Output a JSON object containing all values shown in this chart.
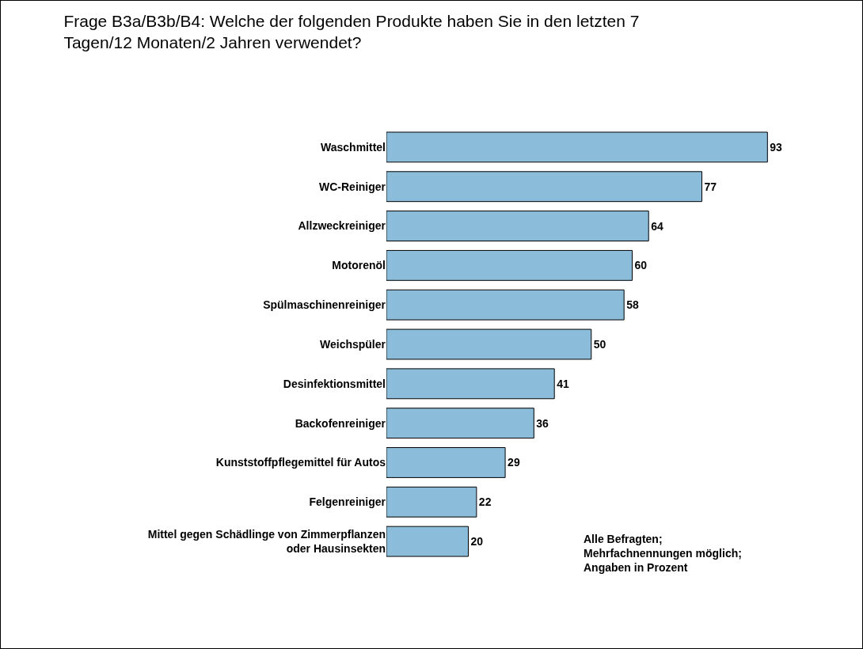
{
  "chart_data": {
    "type": "bar",
    "orientation": "horizontal",
    "title": "Frage B3a/B3b/B4: Welche der folgenden Produkte haben Sie in den letzten 7\nTagen/12 Monaten/2 Jahren verwendet?",
    "categories": [
      "Waschmittel",
      "WC-Reiniger",
      "Allzweckreiniger",
      "Motorenöl",
      "Spülmaschinenreiniger",
      "Weichspüler",
      "Desinfektionsmittel",
      "Backofenreiniger",
      "Kunststoffpflegemittel für Autos",
      "Felgenreiniger",
      "Mittel gegen Schädlinge von Zimmerpflanzen\noder Hausinsekten"
    ],
    "values": [
      93,
      77,
      64,
      60,
      58,
      50,
      41,
      36,
      29,
      22,
      20
    ],
    "color": "#8bbcd9",
    "data_labels": true,
    "tick_labels": "y",
    "annotations": [
      "Alle Befragten;\nMehrfachnennungen möglich;\nAngaben in Prozent"
    ]
  }
}
